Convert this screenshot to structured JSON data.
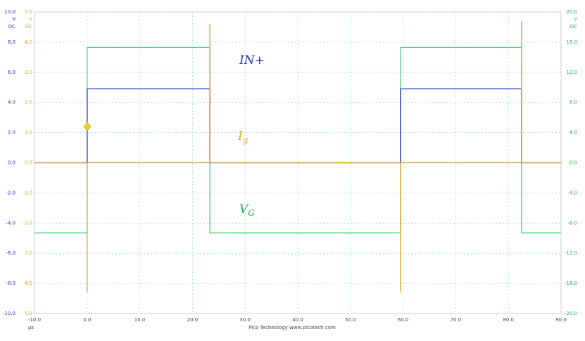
{
  "chart_data": {
    "type": "line",
    "x_unit": "µs",
    "footer": "Pico Technology   www.picotech.com",
    "xlim": [
      -10,
      90
    ],
    "xticks": [
      {
        "value": -10,
        "label": "-10.0"
      },
      {
        "value": 0,
        "label": "0.0"
      },
      {
        "value": 10,
        "label": "10.0"
      },
      {
        "value": 20,
        "label": "20.0"
      },
      {
        "value": 30,
        "label": "30.0"
      },
      {
        "value": 40,
        "label": "40.0"
      },
      {
        "value": 50,
        "label": "50.0"
      },
      {
        "value": 60,
        "label": "60.0"
      },
      {
        "value": 70,
        "label": "70.0"
      },
      {
        "value": 80,
        "label": "80.0"
      },
      {
        "value": 90,
        "label": "90.0"
      }
    ],
    "ylim": [
      -10,
      10
    ],
    "y_units": [
      "V",
      "DC"
    ],
    "yticks": [
      {
        "value": 10,
        "label": "10.0"
      },
      {
        "value": 8,
        "label": "8.0"
      },
      {
        "value": 6,
        "label": "6.0"
      },
      {
        "value": 4,
        "label": "4.0"
      },
      {
        "value": 2,
        "label": "2.0"
      },
      {
        "value": 0,
        "label": "0.0"
      },
      {
        "value": -2,
        "label": "-2.0"
      },
      {
        "value": -4,
        "label": "-4.0"
      },
      {
        "value": -6,
        "label": "-6.0"
      },
      {
        "value": -8,
        "label": "-8.0"
      },
      {
        "value": -10,
        "label": "-10.0"
      }
    ],
    "y3lim": [
      -5,
      5
    ],
    "y3_units": [
      "V",
      "DC"
    ],
    "y3ticks": [
      {
        "value": 5,
        "label": "5.0"
      },
      {
        "value": 4,
        "label": "4.0"
      },
      {
        "value": 3,
        "label": "3.0"
      },
      {
        "value": 2,
        "label": "2.0"
      },
      {
        "value": 1,
        "label": "1.0"
      },
      {
        "value": 0,
        "label": "0.0"
      },
      {
        "value": -1,
        "label": "-1.0"
      },
      {
        "value": -2,
        "label": "-2.0"
      },
      {
        "value": -3,
        "label": "-3.0"
      },
      {
        "value": -4,
        "label": "-4.0"
      },
      {
        "value": -5,
        "label": "-5.0"
      }
    ],
    "y2lim": [
      -20,
      20
    ],
    "y2_units": [
      "V",
      "DC"
    ],
    "y2ticks": [
      {
        "value": 20,
        "label": "20.0"
      },
      {
        "value": 16,
        "label": "16.0"
      },
      {
        "value": 12,
        "label": "12.0"
      },
      {
        "value": 8,
        "label": "8.0"
      },
      {
        "value": 4,
        "label": "4.0"
      },
      {
        "value": 0,
        "label": "0.0"
      },
      {
        "value": -4,
        "label": "-4.0"
      },
      {
        "value": -8,
        "label": "-8.0"
      },
      {
        "value": -12,
        "label": "-12.0"
      },
      {
        "value": -16,
        "label": "-16.0"
      },
      {
        "value": -20,
        "label": "-20.0"
      }
    ],
    "grid": true,
    "series": [
      {
        "color": "#4fcf84",
        "axis": "y2",
        "x": [
          -10,
          0,
          0,
          23.3,
          23.3,
          59.5,
          59.5,
          82.5,
          82.5,
          90
        ],
        "values": [
          -9.3,
          -9.3,
          15.3,
          15.3,
          -9.3,
          -9.3,
          15.3,
          15.3,
          -9.3,
          -9.3
        ]
      },
      {
        "color": "#2430b8",
        "axis": "y",
        "x": [
          -10,
          0,
          0,
          23.3,
          23.3,
          59.5,
          59.5,
          82.5,
          82.5,
          90
        ],
        "values": [
          0,
          0,
          4.9,
          4.9,
          0,
          0,
          4.9,
          4.9,
          0,
          0
        ]
      },
      {
        "color": "#d9a024",
        "axis": "y3",
        "x": [
          -10,
          0,
          0,
          0,
          23.3,
          23.3,
          23.3,
          59.5,
          59.5,
          59.5,
          82.5,
          82.5,
          82.5,
          90
        ],
        "values": [
          0,
          0,
          -4.3,
          0,
          0,
          4.6,
          0,
          0,
          -4.3,
          0,
          0,
          4.7,
          0,
          0
        ]
      }
    ],
    "annotations": [
      {
        "text": "IN+",
        "color": "#2430b8"
      },
      {
        "text": "I",
        "sub": "g",
        "color": "#e0a830"
      },
      {
        "text": "V",
        "sub": "G",
        "color": "#22aa55"
      }
    ]
  }
}
